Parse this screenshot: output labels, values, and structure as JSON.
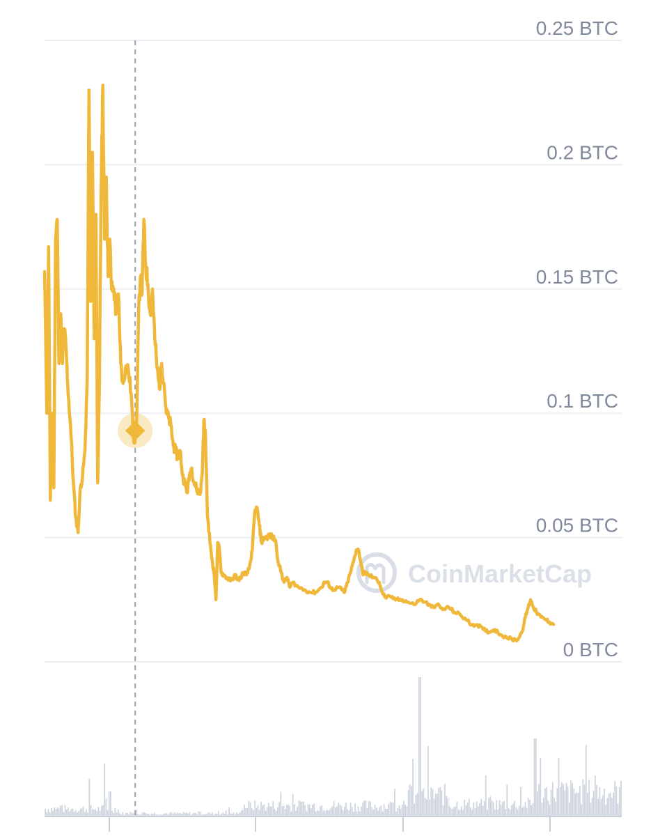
{
  "watermark": {
    "brand": "CoinMarketCap"
  },
  "colors": {
    "line": "#f0b83a",
    "grid": "#eceef2",
    "axis_text": "#808a9d",
    "volume": "#cfd5df",
    "crosshair": "#9aa2b1"
  },
  "chart_data": {
    "type": "line",
    "title": "",
    "xlabel": "",
    "ylabel": "",
    "y_tick_labels": [
      "0 BTC",
      "0.05 BTC",
      "0.1 BTC",
      "0.15 BTC",
      "0.2 BTC",
      "0.25 BTC"
    ],
    "y_ticks": [
      0,
      0.05,
      0.1,
      0.15,
      0.2,
      0.25
    ],
    "ylim": [
      0,
      0.25
    ],
    "y_label_position": "right",
    "grid": true,
    "x_range": [
      0,
      100
    ],
    "series": [
      {
        "values": [
          [
            0.0,
            0.157
          ],
          [
            0.4,
            0.1
          ],
          [
            0.7,
            0.167
          ],
          [
            1.0,
            0.065
          ],
          [
            1.3,
            0.1
          ],
          [
            1.6,
            0.07
          ],
          [
            1.9,
            0.17
          ],
          [
            2.2,
            0.178
          ],
          [
            2.5,
            0.12
          ],
          [
            2.8,
            0.14
          ],
          [
            3.1,
            0.12
          ],
          [
            3.4,
            0.134
          ],
          [
            3.7,
            0.127
          ],
          [
            4.0,
            0.112
          ],
          [
            4.5,
            0.095
          ],
          [
            5.0,
            0.072
          ],
          [
            5.4,
            0.058
          ],
          [
            5.8,
            0.052
          ],
          [
            6.2,
            0.07
          ],
          [
            6.6,
            0.075
          ],
          [
            7.0,
            0.085
          ],
          [
            7.4,
            0.115
          ],
          [
            7.7,
            0.23
          ],
          [
            8.0,
            0.145
          ],
          [
            8.3,
            0.205
          ],
          [
            8.6,
            0.13
          ],
          [
            8.9,
            0.18
          ],
          [
            9.2,
            0.072
          ],
          [
            9.5,
            0.11
          ],
          [
            9.8,
            0.19
          ],
          [
            10.1,
            0.232
          ],
          [
            10.4,
            0.17
          ],
          [
            10.7,
            0.195
          ],
          [
            11.0,
            0.155
          ],
          [
            11.3,
            0.17
          ],
          [
            11.6,
            0.15
          ],
          [
            12.0,
            0.15
          ],
          [
            12.4,
            0.14
          ],
          [
            12.8,
            0.148
          ],
          [
            13.2,
            0.12
          ],
          [
            13.6,
            0.112
          ],
          [
            14.0,
            0.118
          ],
          [
            14.5,
            0.118
          ],
          [
            15.0,
            0.108
          ],
          [
            15.4,
            0.09
          ],
          [
            15.7,
            0.09
          ],
          [
            16.0,
            0.1
          ],
          [
            16.3,
            0.14
          ],
          [
            16.6,
            0.155
          ],
          [
            16.9,
            0.148
          ],
          [
            17.2,
            0.178
          ],
          [
            17.5,
            0.16
          ],
          [
            17.9,
            0.152
          ],
          [
            18.3,
            0.14
          ],
          [
            18.7,
            0.15
          ],
          [
            19.1,
            0.13
          ],
          [
            19.5,
            0.118
          ],
          [
            19.9,
            0.11
          ],
          [
            20.3,
            0.12
          ],
          [
            20.7,
            0.112
          ],
          [
            21.1,
            0.1
          ],
          [
            21.5,
            0.098
          ],
          [
            21.9,
            0.095
          ],
          [
            22.3,
            0.087
          ],
          [
            22.7,
            0.085
          ],
          [
            23.1,
            0.082
          ],
          [
            23.5,
            0.085
          ],
          [
            23.9,
            0.075
          ],
          [
            24.3,
            0.072
          ],
          [
            24.7,
            0.068
          ],
          [
            25.1,
            0.075
          ],
          [
            25.5,
            0.078
          ],
          [
            25.9,
            0.072
          ],
          [
            26.3,
            0.07
          ],
          [
            26.7,
            0.068
          ],
          [
            27.0,
            0.068
          ],
          [
            27.3,
            0.075
          ],
          [
            27.6,
            0.097
          ],
          [
            27.9,
            0.09
          ],
          [
            28.2,
            0.06
          ],
          [
            28.5,
            0.052
          ],
          [
            28.8,
            0.045
          ],
          [
            29.1,
            0.04
          ],
          [
            29.4,
            0.035
          ],
          [
            29.7,
            0.025
          ],
          [
            30.0,
            0.048
          ],
          [
            30.3,
            0.045
          ],
          [
            30.6,
            0.036
          ],
          [
            31.0,
            0.035
          ],
          [
            31.5,
            0.034
          ],
          [
            32.0,
            0.033
          ],
          [
            32.5,
            0.033
          ],
          [
            33.0,
            0.035
          ],
          [
            33.5,
            0.033
          ],
          [
            34.0,
            0.034
          ],
          [
            34.5,
            0.036
          ],
          [
            35.0,
            0.035
          ],
          [
            35.5,
            0.038
          ],
          [
            36.0,
            0.045
          ],
          [
            36.4,
            0.06
          ],
          [
            36.8,
            0.062
          ],
          [
            37.2,
            0.055
          ],
          [
            37.6,
            0.048
          ],
          [
            38.0,
            0.05
          ],
          [
            38.5,
            0.05
          ],
          [
            39.0,
            0.051
          ],
          [
            39.5,
            0.05
          ],
          [
            40.0,
            0.049
          ],
          [
            40.5,
            0.04
          ],
          [
            41.0,
            0.036
          ],
          [
            41.5,
            0.032
          ],
          [
            42.0,
            0.034
          ],
          [
            42.5,
            0.03
          ],
          [
            43.0,
            0.032
          ],
          [
            44.0,
            0.03
          ],
          [
            45.0,
            0.029
          ],
          [
            46.0,
            0.028
          ],
          [
            47.0,
            0.028
          ],
          [
            48.0,
            0.03
          ],
          [
            48.5,
            0.032
          ],
          [
            49.0,
            0.032
          ],
          [
            49.5,
            0.03
          ],
          [
            50.0,
            0.029
          ],
          [
            51.0,
            0.03
          ],
          [
            51.5,
            0.029
          ],
          [
            52.0,
            0.028
          ],
          [
            52.5,
            0.032
          ],
          [
            53.0,
            0.036
          ],
          [
            53.5,
            0.04
          ],
          [
            54.0,
            0.045
          ],
          [
            54.4,
            0.045
          ],
          [
            54.8,
            0.04
          ],
          [
            55.2,
            0.035
          ],
          [
            55.6,
            0.036
          ],
          [
            56.0,
            0.035
          ],
          [
            57.0,
            0.034
          ],
          [
            58.0,
            0.032
          ],
          [
            58.5,
            0.028
          ],
          [
            59.0,
            0.026
          ],
          [
            60.0,
            0.026
          ],
          [
            61.0,
            0.025
          ],
          [
            62.0,
            0.025
          ],
          [
            63.0,
            0.024
          ],
          [
            64.0,
            0.023
          ],
          [
            65.0,
            0.025
          ],
          [
            66.0,
            0.024
          ],
          [
            67.0,
            0.022
          ],
          [
            68.0,
            0.023
          ],
          [
            69.0,
            0.021
          ],
          [
            70.0,
            0.022
          ],
          [
            71.0,
            0.02
          ],
          [
            72.0,
            0.019
          ],
          [
            73.0,
            0.017
          ],
          [
            74.0,
            0.015
          ],
          [
            75.0,
            0.015
          ],
          [
            76.0,
            0.013
          ],
          [
            77.0,
            0.012
          ],
          [
            78.0,
            0.013
          ],
          [
            79.0,
            0.011
          ],
          [
            80.0,
            0.01
          ],
          [
            81.0,
            0.009
          ],
          [
            82.0,
            0.009
          ],
          [
            82.7,
            0.012
          ],
          [
            83.3,
            0.018
          ],
          [
            83.8,
            0.022
          ],
          [
            84.2,
            0.025
          ],
          [
            84.7,
            0.022
          ],
          [
            85.2,
            0.02
          ],
          [
            86.0,
            0.018
          ],
          [
            86.8,
            0.017
          ],
          [
            87.5,
            0.016
          ],
          [
            88.2,
            0.015
          ]
        ]
      }
    ],
    "volume": {
      "peaks": [
        [
          7.8,
          0.27
        ],
        [
          10.5,
          0.38
        ],
        [
          11.3,
          0.18
        ],
        [
          65.0,
          1.0
        ],
        [
          66.5,
          0.2
        ],
        [
          85.0,
          0.56
        ],
        [
          86.0,
          0.42
        ],
        [
          89.0,
          0.42
        ]
      ]
    },
    "highlight": {
      "x": 15.7,
      "y": 0.093
    }
  }
}
